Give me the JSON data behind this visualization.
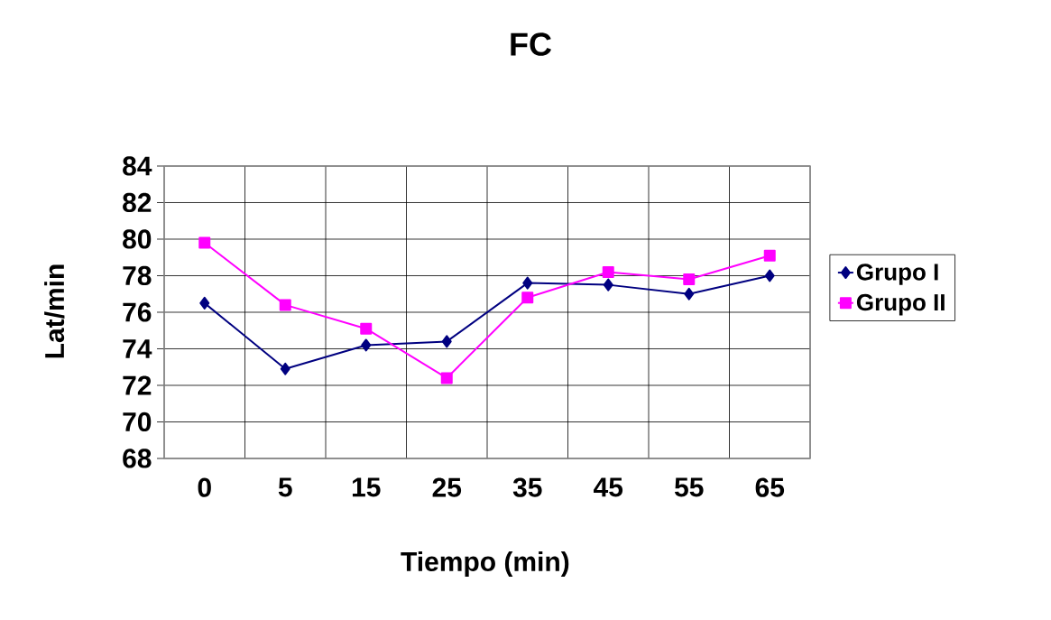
{
  "chart_data": {
    "type": "line",
    "title": "FC",
    "xlabel": "Tiempo (min)",
    "ylabel": "Lat/min",
    "categories": [
      "0",
      "5",
      "15",
      "25",
      "35",
      "45",
      "55",
      "65"
    ],
    "series": [
      {
        "name": "Grupo I",
        "color": "#000080",
        "marker": "diamond",
        "values": [
          76.5,
          72.9,
          74.2,
          74.4,
          77.6,
          77.5,
          77.0,
          78.0
        ]
      },
      {
        "name": "Grupo II",
        "color": "#ff00ff",
        "marker": "square",
        "values": [
          79.8,
          76.4,
          75.1,
          72.4,
          76.8,
          78.2,
          77.8,
          79.1
        ]
      }
    ],
    "ylim": [
      68,
      84
    ],
    "yticks": [
      68,
      70,
      72,
      74,
      76,
      78,
      80,
      82,
      84
    ],
    "grid": true,
    "legend": "right",
    "line_style": "solid"
  }
}
